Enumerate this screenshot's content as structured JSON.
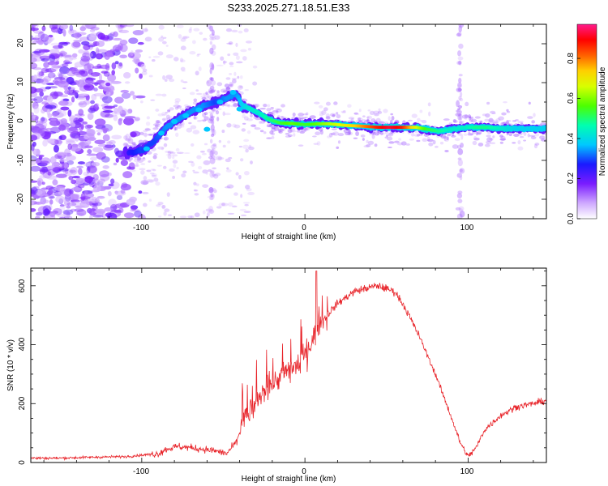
{
  "title": "S233.2025.271.18.51.E33",
  "chart_data": [
    {
      "type": "heatmap",
      "xlabel": "Height of straight line (km)",
      "ylabel": "Frequency (Hz)",
      "xlim": [
        -168,
        148
      ],
      "ylim": [
        -25,
        25
      ],
      "x_ticks": [
        -100,
        0,
        100
      ],
      "y_ticks": [
        -20,
        -10,
        0,
        10,
        20
      ],
      "colorbar": {
        "label": "Normalized spectral amplitude",
        "range": [
          0,
          0.97
        ],
        "ticks": [
          0.0,
          0.2,
          0.4,
          0.6,
          0.8
        ]
      },
      "ridge": [
        {
          "x": -108,
          "y": -8,
          "a": 0.25
        },
        {
          "x": -100,
          "y": -7.5,
          "a": 0.3
        },
        {
          "x": -92,
          "y": -5,
          "a": 0.3
        },
        {
          "x": -85,
          "y": -1.5,
          "a": 0.35
        },
        {
          "x": -78,
          "y": 0.5,
          "a": 0.35
        },
        {
          "x": -70,
          "y": 2.5,
          "a": 0.35
        },
        {
          "x": -62,
          "y": 4,
          "a": 0.35
        },
        {
          "x": -55,
          "y": 5,
          "a": 0.3
        },
        {
          "x": -48,
          "y": 6,
          "a": 0.35
        },
        {
          "x": -42,
          "y": 7,
          "a": 0.35
        },
        {
          "x": -38,
          "y": 4,
          "a": 0.4
        },
        {
          "x": -33,
          "y": 3.2,
          "a": 0.45
        },
        {
          "x": -28,
          "y": 2.2,
          "a": 0.45
        },
        {
          "x": -22,
          "y": 0.5,
          "a": 0.5
        },
        {
          "x": -15,
          "y": -0.4,
          "a": 0.55
        },
        {
          "x": -8,
          "y": -0.5,
          "a": 0.6
        },
        {
          "x": 0,
          "y": -0.8,
          "a": 0.55
        },
        {
          "x": 8,
          "y": -0.6,
          "a": 0.6
        },
        {
          "x": 15,
          "y": -0.6,
          "a": 0.65
        },
        {
          "x": 25,
          "y": -1,
          "a": 0.7
        },
        {
          "x": 35,
          "y": -1.2,
          "a": 0.8
        },
        {
          "x": 45,
          "y": -1.5,
          "a": 0.9
        },
        {
          "x": 52,
          "y": -1.5,
          "a": 0.95
        },
        {
          "x": 60,
          "y": -1.5,
          "a": 0.9
        },
        {
          "x": 68,
          "y": -1.5,
          "a": 0.7
        },
        {
          "x": 75,
          "y": -2,
          "a": 0.55
        },
        {
          "x": 82,
          "y": -2.5,
          "a": 0.5
        },
        {
          "x": 90,
          "y": -2,
          "a": 0.45
        },
        {
          "x": 98,
          "y": -1.5,
          "a": 0.45
        },
        {
          "x": 105,
          "y": -1.5,
          "a": 0.5
        },
        {
          "x": 112,
          "y": -1.5,
          "a": 0.5
        },
        {
          "x": 120,
          "y": -1.8,
          "a": 0.45
        },
        {
          "x": 130,
          "y": -1.8,
          "a": 0.4
        },
        {
          "x": 140,
          "y": -1.8,
          "a": 0.4
        },
        {
          "x": 148,
          "y": -1.8,
          "a": 0.4
        }
      ]
    },
    {
      "type": "line",
      "xlabel": "Height of straight line (km)",
      "ylabel": "SNR (10 * v/v)",
      "xlim": [
        -168,
        148
      ],
      "ylim": [
        0,
        660
      ],
      "x_ticks": [
        -100,
        0,
        100
      ],
      "y_ticks": [
        0,
        200,
        400,
        600
      ],
      "color": "#e8242a",
      "series": [
        {
          "name": "SNR",
          "x": [
            -168,
            -150,
            -130,
            -110,
            -100,
            -90,
            -85,
            -78,
            -70,
            -62,
            -55,
            -48,
            -42,
            -38,
            -32,
            -25,
            -18,
            -10,
            -5,
            0,
            5,
            10,
            20,
            30,
            40,
            45,
            50,
            55,
            60,
            70,
            80,
            90,
            95,
            100,
            105,
            110,
            120,
            130,
            140,
            148
          ],
          "y": [
            15,
            15,
            18,
            20,
            25,
            30,
            45,
            55,
            50,
            45,
            40,
            30,
            70,
            140,
            180,
            240,
            280,
            310,
            330,
            370,
            420,
            480,
            540,
            580,
            595,
            600,
            590,
            580,
            540,
            430,
            300,
            150,
            70,
            20,
            50,
            110,
            160,
            190,
            200,
            210
          ]
        }
      ]
    }
  ],
  "colors": {
    "series_line": "#e8242a",
    "axis": "#000000",
    "background": "#ffffff"
  }
}
